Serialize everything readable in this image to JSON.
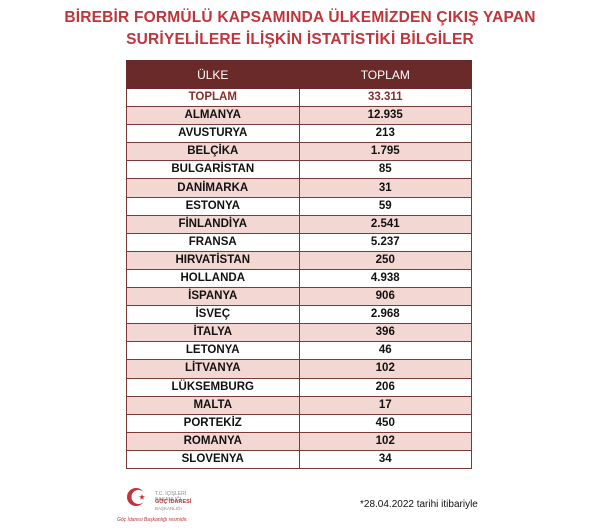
{
  "title": {
    "line1": "BİREBİR FORMÜLÜ KAPSAMINDA ÜLKEMİZDEN ÇIKIŞ YAPAN",
    "line2": "SURİYELİLERE İLİŞKİN İSTATİSTİKİ BİLGİLER"
  },
  "table": {
    "headers": [
      "ÜLKE",
      "TOPLAM"
    ],
    "total": {
      "label": "TOPLAM",
      "value": "33.311"
    },
    "rows": [
      {
        "country": "ALMANYA",
        "value": "12.935"
      },
      {
        "country": "AVUSTURYA",
        "value": "213"
      },
      {
        "country": "BELÇİKA",
        "value": "1.795"
      },
      {
        "country": "BULGARİSTAN",
        "value": "85"
      },
      {
        "country": "DANİMARKA",
        "value": "31"
      },
      {
        "country": "ESTONYA",
        "value": "59"
      },
      {
        "country": "FİNLANDİYA",
        "value": "2.541"
      },
      {
        "country": "FRANSA",
        "value": "5.237"
      },
      {
        "country": "HIRVATİSTAN",
        "value": "250"
      },
      {
        "country": "HOLLANDA",
        "value": "4.938"
      },
      {
        "country": "İSPANYA",
        "value": "906"
      },
      {
        "country": "İSVEÇ",
        "value": "2.968"
      },
      {
        "country": "İTALYA",
        "value": "396"
      },
      {
        "country": "LETONYA",
        "value": "46"
      },
      {
        "country": "LİTVANYA",
        "value": "102"
      },
      {
        "country": "LÜKSEMBURG",
        "value": "206"
      },
      {
        "country": "MALTA",
        "value": "17"
      },
      {
        "country": "PORTEKİZ",
        "value": "450"
      },
      {
        "country": "ROMANYA",
        "value": "102"
      },
      {
        "country": "SLOVENYA",
        "value": "34"
      }
    ]
  },
  "footer": {
    "logo": {
      "icon": "crescent-star-emblem",
      "org_line1": "T.C. İÇİŞLERİ BAKANLIĞI",
      "org_line2": "GÖÇ İDARESİ",
      "org_line3": "BAŞKANLIĞI",
      "tagline": "Göç İdaresi Başkanlığı resmidir."
    },
    "note": "*28.04.2022 tarihi itibariyle"
  },
  "colors": {
    "title": "#c0343a",
    "header_bg": "#6b2a2a",
    "stripe": "#f3d7d3",
    "total_text": "#8b2c2c"
  }
}
